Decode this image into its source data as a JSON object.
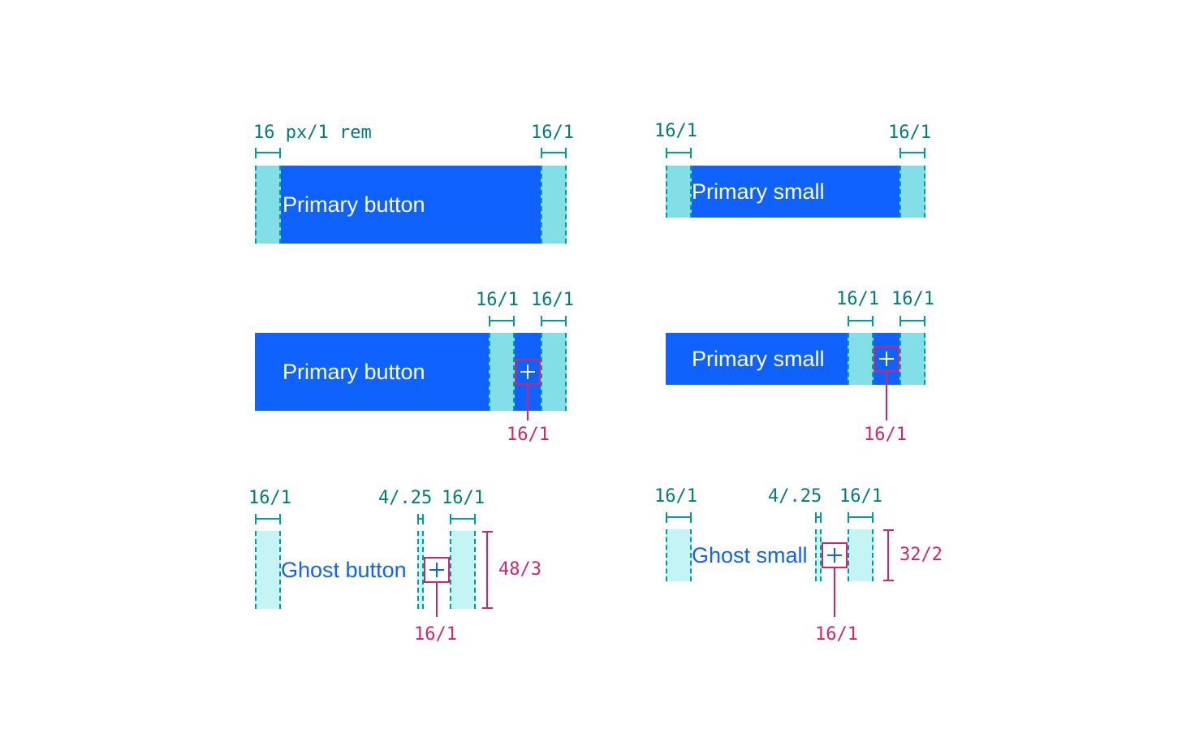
{
  "colors": {
    "primary": "#0f62fe",
    "padding_fill": "#82dfe8",
    "ghost_padding_fill": "#c4f4f4",
    "spacing_measure": "#009d9a",
    "icon_measure": "#d02670"
  },
  "row1": {
    "primary": {
      "label": "Primary button",
      "left_padding": "16 px/1 rem",
      "right_padding": "16/1"
    },
    "small": {
      "label": "Primary small",
      "left_padding": "16/1",
      "right_padding": "16/1"
    }
  },
  "row2": {
    "primary": {
      "label": "Primary button",
      "padding_a": "16/1",
      "padding_b": "16/1",
      "icon_size": "16/1",
      "icon": "add-icon"
    },
    "small": {
      "label": "Primary small",
      "padding_a": "16/1",
      "padding_b": "16/1",
      "icon_size": "16/1",
      "icon": "add-icon"
    }
  },
  "row3": {
    "ghost": {
      "label": "Ghost button",
      "left_padding": "16/1",
      "gap": "4/.25",
      "right_padding": "16/1",
      "icon_size": "16/1",
      "height": "48/3",
      "icon": "add-icon"
    },
    "ghost_small": {
      "label": "Ghost small",
      "left_padding": "16/1",
      "gap": "4/.25",
      "right_padding": "16/1",
      "icon_size": "16/1",
      "height": "32/2",
      "icon": "add-icon"
    }
  }
}
